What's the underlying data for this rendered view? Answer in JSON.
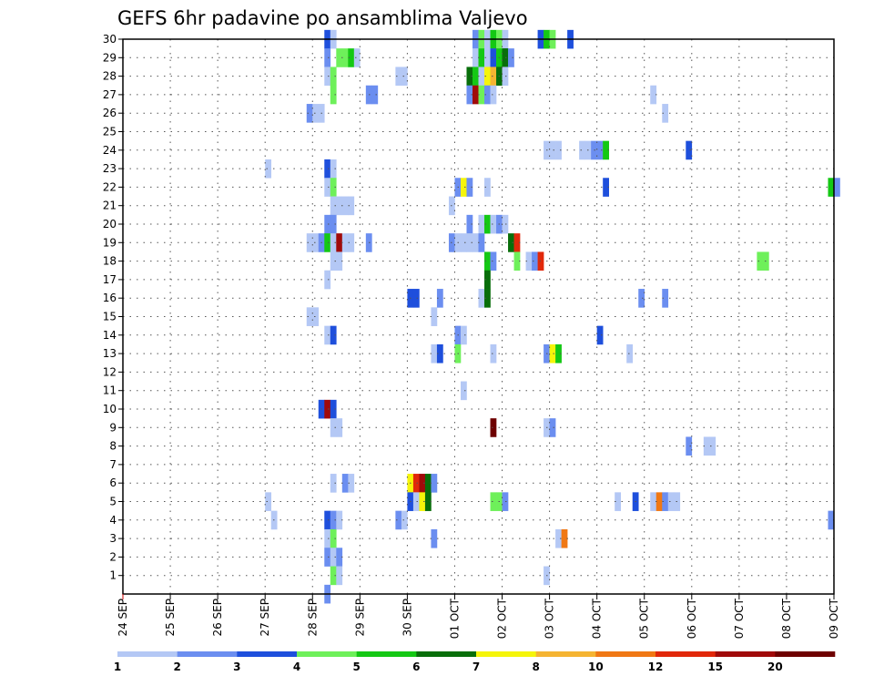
{
  "chart_data": {
    "type": "heatmap",
    "title": "GEFS 6hr padavine po ansamblima Valjevo",
    "xlabel": "",
    "ylabel": "",
    "x_ticks": [
      "24 SEP",
      "25 SEP",
      "26 SEP",
      "27 SEP",
      "28 SEP",
      "29 SEP",
      "30 SEP",
      "01 OCT",
      "02 OCT",
      "03 OCT",
      "04 OCT",
      "05 OCT",
      "06 OCT",
      "07 OCT",
      "08 OCT",
      "09 OCT"
    ],
    "y_ticks": [
      "1",
      "2",
      "3",
      "4",
      "5",
      "6",
      "7",
      "8",
      "9",
      "10",
      "11",
      "12",
      "13",
      "14",
      "15",
      "16",
      "17",
      "18",
      "19",
      "20",
      "21",
      "22",
      "23",
      "24",
      "25",
      "26",
      "27",
      "28",
      "29",
      "30"
    ],
    "xlim_days": [
      0,
      15
    ],
    "ylim": [
      0,
      30
    ],
    "grid": true,
    "colorbar": {
      "labels": [
        "1",
        "2",
        "3",
        "4",
        "5",
        "6",
        "7",
        "8",
        "10",
        "12",
        "15",
        "20"
      ],
      "colors": [
        "#b4c8f5",
        "#6b8ef0",
        "#1e4fdc",
        "#6ef05a",
        "#14c814",
        "#086e0a",
        "#f5f50a",
        "#f5b432",
        "#f07814",
        "#e1280a",
        "#a00a0a",
        "#6e0000"
      ]
    },
    "cells": [
      [
        30,
        4,
        2,
        3
      ],
      [
        30,
        4,
        3,
        1
      ],
      [
        30,
        7,
        3,
        2
      ],
      [
        30,
        7,
        4,
        4
      ],
      [
        30,
        7,
        5,
        1
      ],
      [
        30,
        7,
        6,
        5
      ],
      [
        30,
        7,
        7,
        4
      ],
      [
        30,
        7,
        8,
        1
      ],
      [
        30,
        8,
        6,
        3
      ],
      [
        30,
        8,
        7,
        5
      ],
      [
        30,
        8,
        8,
        4
      ],
      [
        30,
        9,
        3,
        3
      ],
      [
        29,
        4,
        2,
        2
      ],
      [
        29,
        4,
        4,
        4
      ],
      [
        29,
        4,
        5,
        4
      ],
      [
        29,
        4,
        6,
        5
      ],
      [
        29,
        4,
        7,
        1
      ],
      [
        29,
        7,
        3,
        1
      ],
      [
        29,
        7,
        4,
        5
      ],
      [
        29,
        7,
        5,
        1
      ],
      [
        29,
        7,
        6,
        3
      ],
      [
        29,
        7,
        7,
        5
      ],
      [
        29,
        7,
        8,
        6
      ],
      [
        29,
        8,
        0,
        6
      ],
      [
        29,
        8,
        1,
        2
      ],
      [
        28,
        4,
        2,
        1
      ],
      [
        28,
        4,
        3,
        4
      ],
      [
        28,
        5,
        6,
        1
      ],
      [
        28,
        5,
        7,
        1
      ],
      [
        28,
        7,
        2,
        6
      ],
      [
        28,
        7,
        3,
        5
      ],
      [
        28,
        7,
        4,
        1
      ],
      [
        28,
        7,
        5,
        7
      ],
      [
        28,
        7,
        6,
        8
      ],
      [
        28,
        7,
        7,
        6
      ],
      [
        28,
        7,
        8,
        1
      ],
      [
        27,
        4,
        3,
        4
      ],
      [
        27,
        5,
        1,
        2
      ],
      [
        27,
        5,
        2,
        2
      ],
      [
        27,
        7,
        2,
        2
      ],
      [
        27,
        7,
        3,
        11
      ],
      [
        27,
        7,
        4,
        4
      ],
      [
        27,
        7,
        5,
        2
      ],
      [
        27,
        7,
        6,
        1
      ],
      [
        27,
        11,
        1,
        1
      ],
      [
        26,
        3,
        7,
        2
      ],
      [
        26,
        4,
        0,
        1
      ],
      [
        26,
        4,
        1,
        1
      ],
      [
        26,
        11,
        3,
        1
      ],
      [
        24,
        8,
        7,
        1
      ],
      [
        24,
        9,
        0,
        1
      ],
      [
        24,
        9,
        1,
        1
      ],
      [
        24,
        9,
        5,
        1
      ],
      [
        24,
        9,
        6,
        1
      ],
      [
        24,
        9,
        7,
        2
      ],
      [
        24,
        10,
        0,
        2
      ],
      [
        24,
        10,
        1,
        5
      ],
      [
        24,
        11,
        7,
        3
      ],
      [
        23,
        3,
        0,
        1
      ],
      [
        23,
        4,
        2,
        3
      ],
      [
        23,
        4,
        3,
        1
      ],
      [
        22,
        4,
        2,
        1
      ],
      [
        22,
        4,
        3,
        4
      ],
      [
        22,
        7,
        0,
        2
      ],
      [
        22,
        7,
        1,
        7
      ],
      [
        22,
        7,
        2,
        2
      ],
      [
        22,
        7,
        5,
        1
      ],
      [
        22,
        10,
        1,
        3
      ],
      [
        22,
        14,
        7,
        5
      ],
      [
        22,
        15,
        0,
        2
      ],
      [
        21,
        4,
        3,
        1
      ],
      [
        21,
        4,
        4,
        1
      ],
      [
        21,
        4,
        5,
        1
      ],
      [
        21,
        4,
        6,
        1
      ],
      [
        21,
        6,
        7,
        1
      ],
      [
        20,
        4,
        2,
        2
      ],
      [
        20,
        4,
        3,
        2
      ],
      [
        20,
        7,
        2,
        2
      ],
      [
        20,
        7,
        4,
        1
      ],
      [
        20,
        7,
        5,
        5
      ],
      [
        20,
        7,
        6,
        1
      ],
      [
        20,
        7,
        7,
        2
      ],
      [
        20,
        8,
        0,
        1
      ],
      [
        19,
        3,
        7,
        1
      ],
      [
        19,
        4,
        0,
        1
      ],
      [
        19,
        4,
        1,
        2
      ],
      [
        19,
        4,
        2,
        5
      ],
      [
        19,
        4,
        3,
        1
      ],
      [
        19,
        4,
        4,
        11
      ],
      [
        19,
        4,
        5,
        1
      ],
      [
        19,
        4,
        6,
        1
      ],
      [
        19,
        5,
        1,
        2
      ],
      [
        19,
        6,
        7,
        2
      ],
      [
        19,
        7,
        0,
        1
      ],
      [
        19,
        7,
        1,
        1
      ],
      [
        19,
        7,
        2,
        1
      ],
      [
        19,
        7,
        3,
        1
      ],
      [
        19,
        7,
        4,
        2
      ],
      [
        19,
        8,
        1,
        6
      ],
      [
        19,
        8,
        2,
        10
      ],
      [
        18,
        4,
        3,
        1
      ],
      [
        18,
        4,
        4,
        1
      ],
      [
        18,
        7,
        5,
        5
      ],
      [
        18,
        7,
        6,
        2
      ],
      [
        18,
        8,
        2,
        4
      ],
      [
        18,
        8,
        4,
        1
      ],
      [
        18,
        8,
        5,
        2
      ],
      [
        18,
        8,
        6,
        10
      ],
      [
        18,
        13,
        3,
        4
      ],
      [
        18,
        13,
        4,
        4
      ],
      [
        17,
        4,
        2,
        1
      ],
      [
        17,
        7,
        5,
        6
      ],
      [
        16,
        6,
        0,
        3
      ],
      [
        16,
        6,
        1,
        3
      ],
      [
        16,
        6,
        5,
        2
      ],
      [
        16,
        7,
        4,
        1
      ],
      [
        16,
        7,
        5,
        6
      ],
      [
        16,
        10,
        7,
        2
      ],
      [
        16,
        11,
        3,
        2
      ],
      [
        15,
        3,
        7,
        1
      ],
      [
        15,
        4,
        0,
        1
      ],
      [
        15,
        6,
        4,
        1
      ],
      [
        14,
        4,
        2,
        1
      ],
      [
        14,
        4,
        3,
        3
      ],
      [
        14,
        7,
        0,
        2
      ],
      [
        14,
        7,
        1,
        1
      ],
      [
        14,
        10,
        0,
        3
      ],
      [
        13,
        6,
        4,
        1
      ],
      [
        13,
        6,
        5,
        3
      ],
      [
        13,
        7,
        0,
        4
      ],
      [
        13,
        7,
        6,
        1
      ],
      [
        13,
        8,
        7,
        2
      ],
      [
        13,
        9,
        0,
        7
      ],
      [
        13,
        9,
        1,
        5
      ],
      [
        13,
        10,
        5,
        1
      ],
      [
        11,
        7,
        1,
        1
      ],
      [
        10,
        4,
        1,
        3
      ],
      [
        10,
        4,
        2,
        11
      ],
      [
        10,
        4,
        3,
        3
      ],
      [
        9,
        4,
        3,
        1
      ],
      [
        9,
        4,
        4,
        1
      ],
      [
        9,
        7,
        6,
        12
      ],
      [
        9,
        8,
        7,
        1
      ],
      [
        9,
        9,
        0,
        2
      ],
      [
        8,
        11,
        7,
        2
      ],
      [
        8,
        12,
        2,
        1
      ],
      [
        8,
        12,
        3,
        1
      ],
      [
        6,
        4,
        3,
        1
      ],
      [
        6,
        4,
        5,
        2
      ],
      [
        6,
        4,
        6,
        1
      ],
      [
        6,
        6,
        0,
        7
      ],
      [
        6,
        6,
        1,
        10
      ],
      [
        6,
        6,
        2,
        11
      ],
      [
        6,
        6,
        3,
        6
      ],
      [
        6,
        6,
        4,
        2
      ],
      [
        5,
        3,
        0,
        1
      ],
      [
        5,
        6,
        0,
        3
      ],
      [
        5,
        6,
        1,
        1
      ],
      [
        5,
        6,
        2,
        7
      ],
      [
        5,
        6,
        3,
        6
      ],
      [
        5,
        7,
        6,
        4
      ],
      [
        5,
        7,
        7,
        4
      ],
      [
        5,
        8,
        0,
        2
      ],
      [
        5,
        10,
        3,
        1
      ],
      [
        5,
        10,
        6,
        3
      ],
      [
        5,
        11,
        1,
        1
      ],
      [
        5,
        11,
        2,
        9
      ],
      [
        5,
        11,
        3,
        2
      ],
      [
        5,
        11,
        4,
        1
      ],
      [
        5,
        11,
        5,
        1
      ],
      [
        4,
        3,
        1,
        1
      ],
      [
        4,
        4,
        2,
        3
      ],
      [
        4,
        4,
        3,
        2
      ],
      [
        4,
        4,
        4,
        1
      ],
      [
        4,
        5,
        6,
        2
      ],
      [
        4,
        5,
        7,
        1
      ],
      [
        4,
        14,
        7,
        2
      ],
      [
        3,
        4,
        2,
        1
      ],
      [
        3,
        4,
        3,
        4
      ],
      [
        3,
        6,
        4,
        2
      ],
      [
        3,
        9,
        1,
        1
      ],
      [
        3,
        9,
        2,
        9
      ],
      [
        2,
        4,
        2,
        2
      ],
      [
        2,
        4,
        3,
        1
      ],
      [
        2,
        4,
        4,
        2
      ],
      [
        1,
        4,
        3,
        4
      ],
      [
        1,
        4,
        4,
        1
      ],
      [
        1,
        8,
        7,
        1
      ],
      [
        0,
        4,
        2,
        2
      ]
    ]
  }
}
